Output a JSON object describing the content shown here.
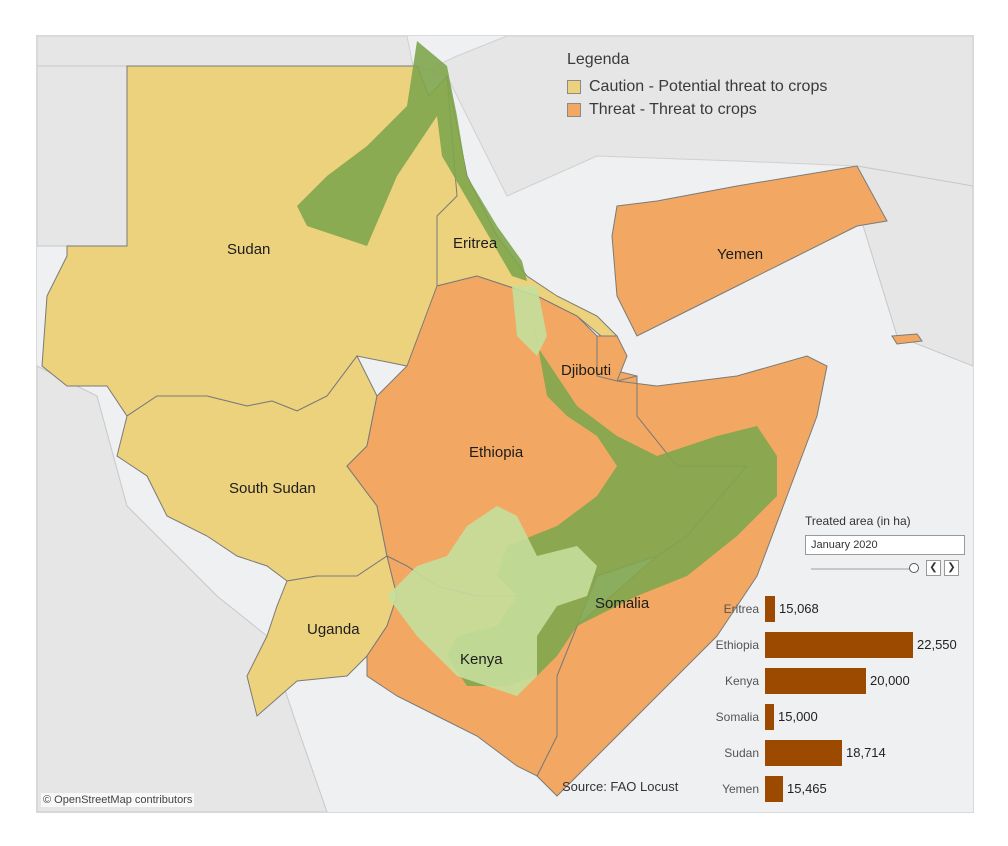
{
  "legend": {
    "title": "Legenda",
    "items": [
      {
        "label": "Caution - Potential threat to crops",
        "color": "#ecd27c"
      },
      {
        "label": "Threat - Threat to crops",
        "color": "#f2a862"
      }
    ]
  },
  "map": {
    "countries": [
      "Sudan",
      "Eritrea",
      "Yemen",
      "Djibouti",
      "Ethiopia",
      "South Sudan",
      "Somalia",
      "Uganda",
      "Kenya"
    ],
    "colors": {
      "caution": "#ecd27c",
      "threat": "#f2a862",
      "swarm_dark": "#7fa64e",
      "swarm_light": "#c4df9c",
      "land": "#e6e6e6",
      "sea": "#eef0f1"
    }
  },
  "control": {
    "title": "Treated area (in ha)",
    "selected": "January 2020",
    "prev_icon": "chevron-left-icon",
    "next_icon": "chevron-right-icon"
  },
  "chart_data": {
    "type": "bar",
    "title": "Treated area (in ha)",
    "categories": [
      "Eritrea",
      "Ethiopia",
      "Kenya",
      "Somalia",
      "Sudan",
      "Yemen"
    ],
    "values": [
      15068,
      22550,
      20000,
      15000,
      18714,
      15465
    ],
    "value_labels": [
      "15,068",
      "22,550",
      "20,000",
      "15,000",
      "18,714",
      "15,465"
    ],
    "color": "#9c4a00",
    "bar_color": "#9c4a00",
    "orientation": "horizontal"
  },
  "source": "Source: FAO Locust",
  "attribution": "© OpenStreetMap contributors"
}
